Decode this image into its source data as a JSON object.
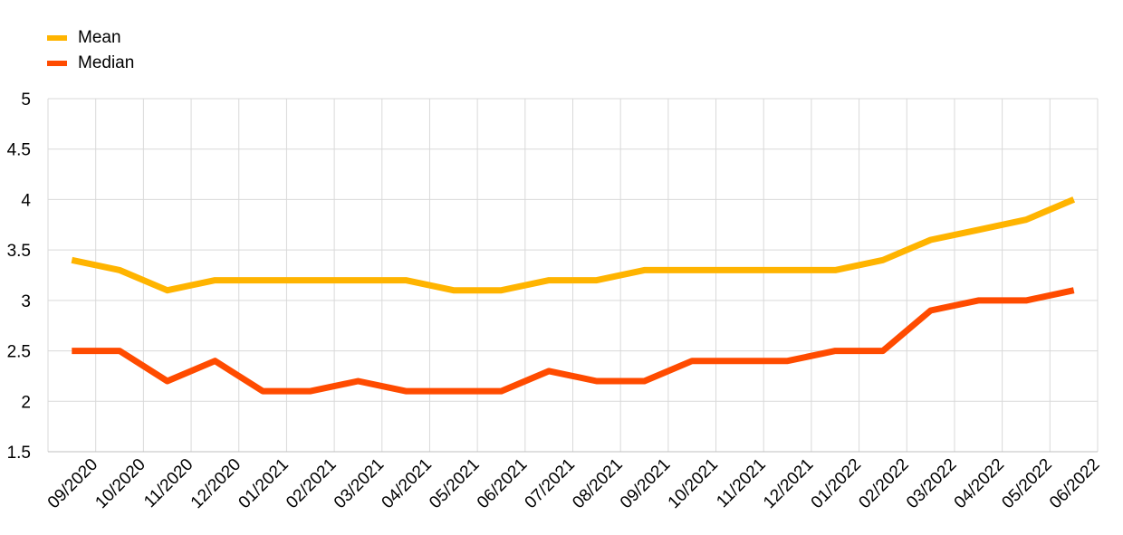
{
  "chart_data": {
    "type": "line",
    "categories": [
      "09/2020",
      "10/2020",
      "11/2020",
      "12/2020",
      "01/2021",
      "02/2021",
      "03/2021",
      "04/2021",
      "05/2021",
      "06/2021",
      "07/2021",
      "08/2021",
      "09/2021",
      "10/2021",
      "11/2021",
      "12/2021",
      "01/2022",
      "02/2022",
      "03/2022",
      "04/2022",
      "05/2022",
      "06/2022"
    ],
    "series": [
      {
        "name": "Mean",
        "color": "#FFB400",
        "values": [
          3.4,
          3.3,
          3.1,
          3.2,
          3.2,
          3.2,
          3.2,
          3.2,
          3.1,
          3.1,
          3.2,
          3.2,
          3.3,
          3.3,
          3.3,
          3.3,
          3.3,
          3.4,
          3.6,
          3.7,
          3.8,
          4.0
        ]
      },
      {
        "name": "Median",
        "color": "#FF4B00",
        "values": [
          2.5,
          2.5,
          2.2,
          2.4,
          2.1,
          2.1,
          2.2,
          2.1,
          2.1,
          2.1,
          2.3,
          2.2,
          2.2,
          2.4,
          2.4,
          2.4,
          2.5,
          2.5,
          2.9,
          3.0,
          3.0,
          3.1
        ]
      }
    ],
    "yticks": [
      "5",
      "4.5",
      "4",
      "3.5",
      "3",
      "2.5",
      "2",
      "1.5"
    ],
    "ylim": [
      1.5,
      5
    ],
    "grid": true,
    "legend_position": "top-left"
  }
}
